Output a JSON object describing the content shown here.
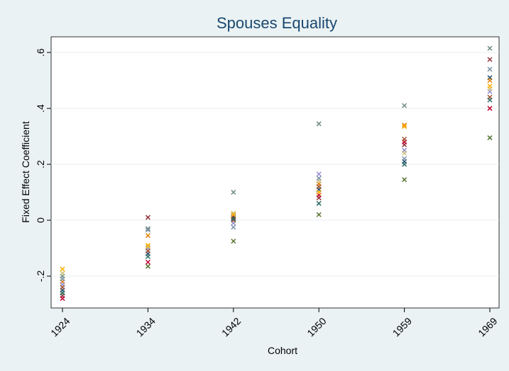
{
  "chart_data": {
    "type": "scatter",
    "title": "Spouses Equality",
    "x_label": "Cohort",
    "y_label": "Fixed Effect Coefficient",
    "categories": [
      "1924",
      "1934",
      "1942",
      "1950",
      "1959",
      "1969"
    ],
    "ylim": [
      -0.314,
      0.656
    ],
    "yticks": [
      {
        "value": -0.2,
        "label": "-.2"
      },
      0,
      {
        "value": 0.2,
        "label": ".2"
      },
      {
        "value": 0.4,
        "label": ".4"
      },
      {
        "value": 0.6,
        "label": ".6"
      }
    ],
    "grid": true,
    "series": [
      {
        "color": "#1a476f",
        "values": [
          -0.25,
          -0.12,
          0.01,
          0.11,
          0.21,
          0.51
        ]
      },
      {
        "color": "#90353b",
        "values": [
          -0.27,
          0.01,
          0.015,
          0.08,
          0.27,
          0.575
        ]
      },
      {
        "color": "#55752f",
        "values": [
          -0.26,
          -0.165,
          -0.075,
          0.02,
          0.145,
          0.295
        ]
      },
      {
        "color": "#e37e00",
        "values": [
          -0.22,
          -0.055,
          0.02,
          0.13,
          0.34,
          0.5
        ]
      },
      {
        "color": "#6e8e84",
        "values": [
          -0.2,
          -0.03,
          0.1,
          0.345,
          0.41,
          0.615
        ]
      },
      {
        "color": "#c10534",
        "values": [
          -0.28,
          -0.15,
          0.005,
          0.09,
          0.28,
          0.4
        ]
      },
      {
        "color": "#938dd2",
        "values": [
          -0.23,
          -0.1,
          -0.01,
          0.165,
          0.25,
          0.46
        ]
      },
      {
        "color": "#cac27e",
        "values": [
          -0.19,
          -0.095,
          0.025,
          0.14,
          0.24,
          0.47
        ]
      },
      {
        "color": "#a0522d",
        "values": [
          -0.24,
          -0.11,
          0.0,
          0.12,
          0.29,
          0.44
        ]
      },
      {
        "color": "#7b92a8",
        "values": [
          -0.21,
          -0.035,
          -0.025,
          0.15,
          0.22,
          0.54
        ]
      },
      {
        "color": "#2d6d66",
        "values": [
          -0.26,
          -0.13,
          0.005,
          0.06,
          0.2,
          0.43
        ]
      },
      {
        "color": "#ffb000",
        "values": [
          -0.175,
          -0.09,
          0.02,
          0.1,
          0.335,
          0.48
        ]
      }
    ]
  }
}
